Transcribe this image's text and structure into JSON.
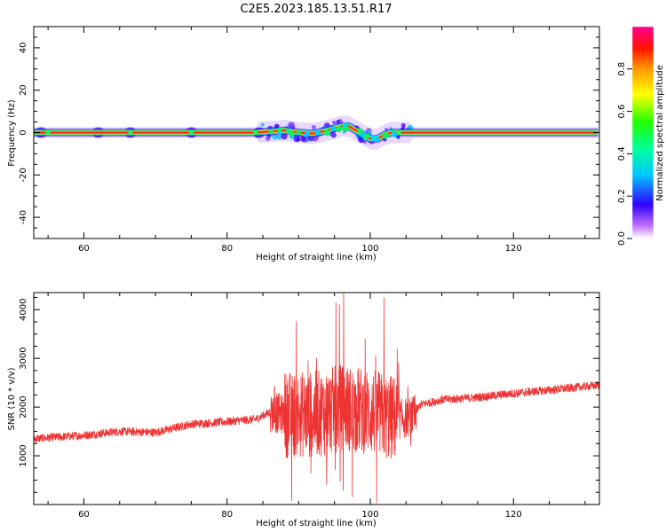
{
  "title": "C2E5.2023.185.13.51.R17",
  "chart_data": [
    {
      "type": "heatmap",
      "xlabel": "Height of straight line (km)",
      "ylabel": "Frequency (Hz)",
      "xlim": [
        53,
        132
      ],
      "ylim": [
        -50,
        50
      ],
      "xticks": [
        60,
        80,
        100,
        120
      ],
      "yticks": [
        -40,
        -20,
        0,
        20,
        40
      ],
      "colorbar": {
        "label": "Normalized spectral amplitude",
        "range": [
          0,
          1
        ],
        "ticks": [
          0.0,
          0.2,
          0.4,
          0.6,
          0.8
        ]
      },
      "ridge": {
        "description_key": "dominant frequency near 0 Hz",
        "x": [
          53,
          60,
          66,
          75,
          84,
          86,
          88,
          90,
          92,
          94,
          95,
          96,
          97,
          98,
          99,
          100,
          101,
          102,
          103,
          104,
          106,
          132
        ],
        "freq": [
          0,
          0,
          0,
          0,
          0,
          0.5,
          1,
          0,
          -0.5,
          1,
          2,
          3,
          3,
          1,
          -1,
          -3,
          -3,
          -1,
          0,
          0,
          0,
          0
        ]
      }
    },
    {
      "type": "line",
      "xlabel": "Height of straight line (km)",
      "ylabel": "SNR (10 * v/v)",
      "xlim": [
        53,
        132
      ],
      "ylim": [
        0,
        4350
      ],
      "xticks": [
        60,
        80,
        100,
        120
      ],
      "yticks": [
        1000,
        2000,
        3000,
        4000
      ],
      "color": "#ee3333",
      "baseline": {
        "x": [
          53,
          60,
          65,
          70,
          75,
          80,
          84,
          86,
          88,
          90,
          92,
          94,
          96,
          98,
          100,
          102,
          104,
          106,
          107,
          110,
          115,
          120,
          125,
          132
        ],
        "snr": [
          1350,
          1420,
          1500,
          1480,
          1650,
          1700,
          1750,
          1900,
          1850,
          1850,
          1850,
          1900,
          2000,
          1950,
          1900,
          1800,
          1750,
          1800,
          2050,
          2150,
          2200,
          2280,
          2350,
          2450
        ]
      },
      "spikes": [
        {
          "x": 89.0,
          "snr": 80
        },
        {
          "x": 91.3,
          "snr": 2960
        },
        {
          "x": 93.9,
          "snr": 400
        },
        {
          "x": 95.2,
          "snr": 4150
        },
        {
          "x": 95.7,
          "snr": 4100
        },
        {
          "x": 96.3,
          "snr": 4350
        },
        {
          "x": 97.5,
          "snr": 150
        },
        {
          "x": 101.9,
          "snr": 4250
        },
        {
          "x": 100.9,
          "snr": 30
        }
      ]
    }
  ]
}
